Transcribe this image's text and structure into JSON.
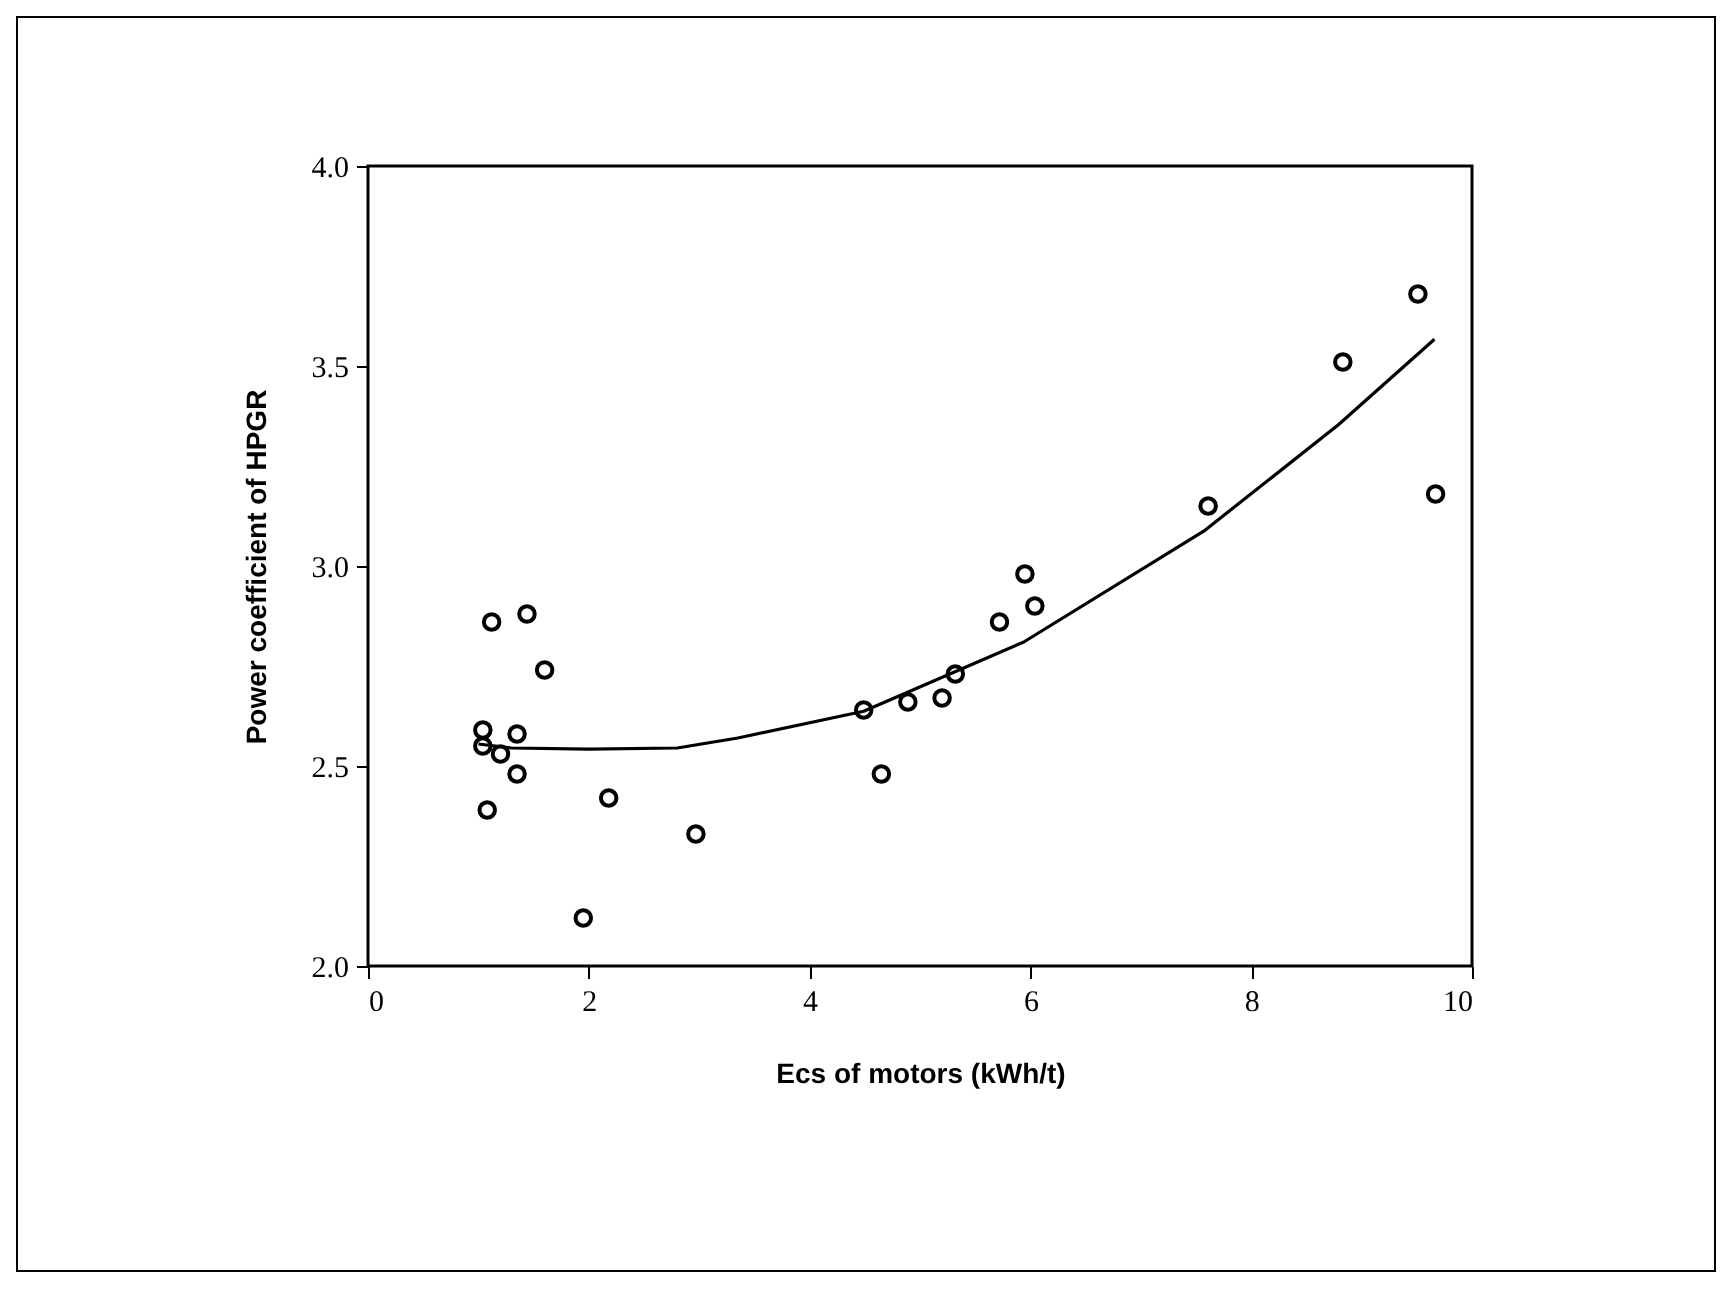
{
  "chart_data": {
    "type": "scatter",
    "xlabel": "Ecs of motors (kWh/t)",
    "ylabel": "Power coefficient of HPGR",
    "xlim": [
      0,
      10
    ],
    "ylim": [
      2.0,
      4.0
    ],
    "xticks": [
      0,
      2,
      4,
      6,
      8,
      10
    ],
    "yticks": [
      {
        "value": 2.0,
        "label": "2.0"
      },
      {
        "value": 2.5,
        "label": "2.5"
      },
      {
        "value": 3.0,
        "label": "3.0"
      },
      {
        "value": 3.5,
        "label": "3.5"
      },
      {
        "value": 4.0,
        "label": "4.0"
      }
    ],
    "grid": false,
    "series": [
      {
        "color": "#000000",
        "marker": "circle",
        "x": [
          1.12,
          1.44,
          1.6,
          1.04,
          1.35,
          1.04,
          1.2,
          1.35,
          1.08,
          2.18,
          2.97,
          1.95,
          9.51,
          8.83,
          9.67,
          7.61,
          5.95,
          6.04,
          5.72,
          5.32,
          5.2,
          4.89,
          4.49,
          4.65
        ],
        "values": [
          2.86,
          2.88,
          2.74,
          2.59,
          2.58,
          2.55,
          2.53,
          2.48,
          2.39,
          2.42,
          2.33,
          2.12,
          3.68,
          3.51,
          3.18,
          3.15,
          2.98,
          2.9,
          2.86,
          2.73,
          2.67,
          2.66,
          2.64,
          2.48
        ]
      },
      {
        "type": "line",
        "color": "#000000",
        "line_style": "solid",
        "x": [
          1.0,
          1.3,
          2.0,
          2.8,
          3.35,
          4.49,
          5.94,
          7.57,
          8.79,
          9.66
        ],
        "values": [
          2.555,
          2.545,
          2.542,
          2.545,
          2.57,
          2.637,
          2.81,
          3.087,
          3.353,
          3.567
        ]
      }
    ]
  }
}
